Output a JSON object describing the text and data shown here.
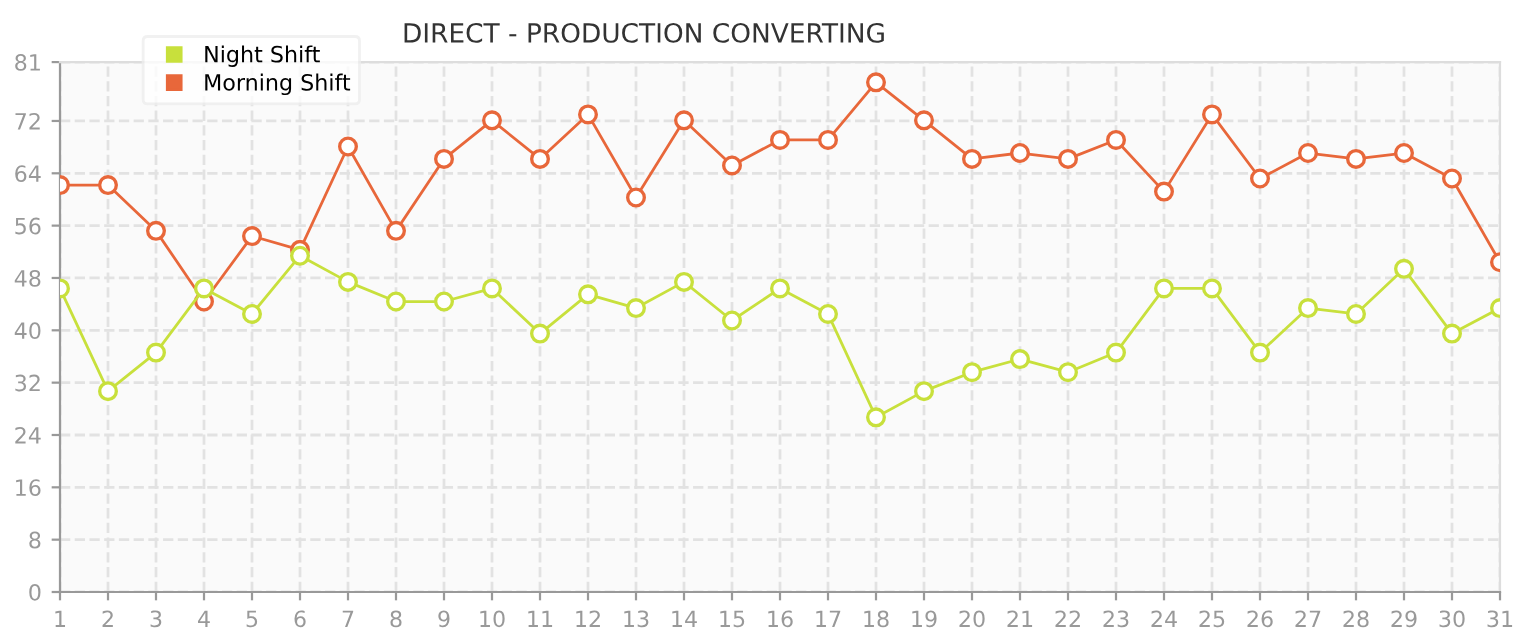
{
  "chart_data": {
    "type": "line",
    "title": "DIRECT - PRODUCTION CONVERTING",
    "categories": [
      "1",
      "2",
      "3",
      "4",
      "5",
      "6",
      "7",
      "8",
      "9",
      "10",
      "11",
      "12",
      "13",
      "14",
      "15",
      "16",
      "17",
      "18",
      "19",
      "20",
      "21",
      "22",
      "23",
      "24",
      "25",
      "26",
      "27",
      "28",
      "29",
      "30",
      "31"
    ],
    "series": [
      {
        "name": "Night Shift",
        "color": "#c8e03c",
        "values": [
          46.4,
          30.7,
          36.6,
          46.4,
          42.5,
          51.4,
          47.4,
          44.4,
          44.4,
          46.4,
          39.5,
          45.5,
          43.4,
          47.4,
          41.5,
          46.4,
          42.5,
          26.7,
          30.7,
          33.6,
          35.6,
          33.6,
          36.6,
          46.4,
          46.4,
          36.6,
          43.4,
          42.5,
          49.4,
          39.5,
          43.4
        ]
      },
      {
        "name": "Morning Shift",
        "color": "#e8673a",
        "values": [
          62.2,
          62.2,
          55.2,
          44.4,
          54.4,
          52.3,
          68.1,
          55.2,
          66.2,
          72.1,
          66.2,
          73.0,
          60.3,
          72.1,
          65.2,
          69.1,
          69.1,
          77.9,
          72.1,
          66.2,
          67.1,
          66.2,
          69.1,
          61.2,
          73.0,
          63.2,
          67.1,
          66.2,
          67.1,
          63.2,
          50.4
        ]
      }
    ],
    "ylim": [
      0,
      81
    ],
    "yticks": [
      0,
      8,
      16,
      24,
      32,
      40,
      48,
      56,
      64,
      72,
      81
    ],
    "grid": true,
    "legend": "top left",
    "marker": "circle",
    "line_style": "solid"
  }
}
